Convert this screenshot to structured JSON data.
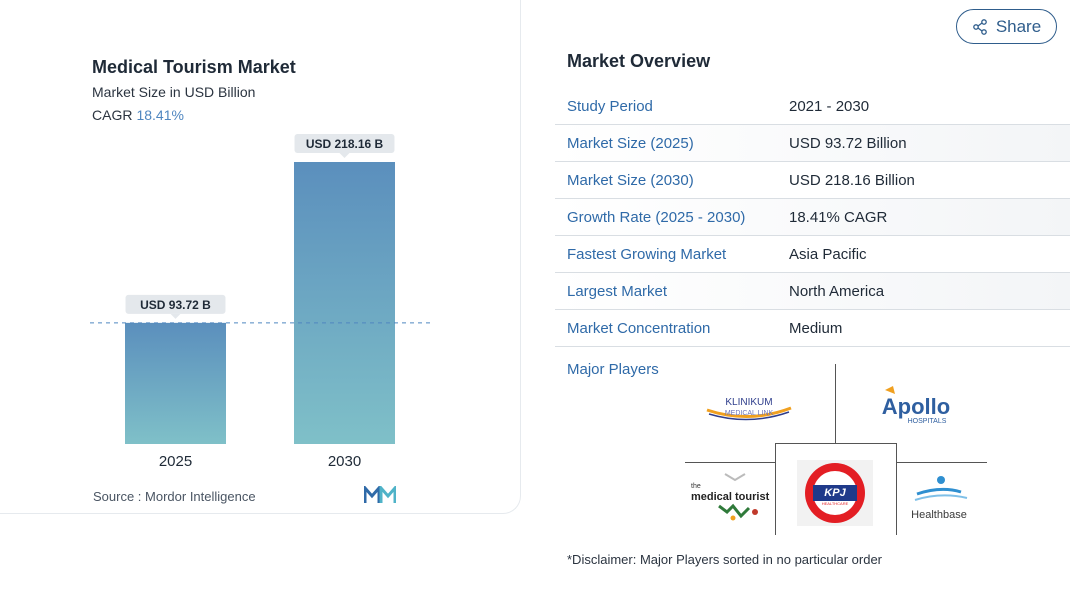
{
  "chart_card": {
    "title": "Medical Tourism Market",
    "subtitle": "Market Size in USD Billion",
    "cagr_label": "CAGR",
    "cagr_value": "18.41%",
    "source": "Source :  Mordor Intelligence",
    "source_logo_icon": "mordor-intelligence-logo-icon"
  },
  "chart_data": {
    "type": "bar",
    "categories": [
      "2025",
      "2030"
    ],
    "values": [
      93.72,
      218.16
    ],
    "data_labels": [
      "USD 93.72 B",
      "USD 218.16 B"
    ],
    "bar_colors": {
      "top": "#5b8fbd",
      "bottom": "#7fc0c8"
    },
    "reference_line": {
      "value": 93.72,
      "style": "dashed",
      "color": "#4f86c0"
    },
    "ylim": [
      0,
      218.16
    ],
    "grid": false,
    "legend": "none"
  },
  "share": {
    "label": "Share",
    "icon": "share-icon",
    "color": "#2f5d8c"
  },
  "overview": {
    "title": "Market Overview",
    "rows": [
      {
        "key": "Study Period",
        "value": "2021 - 2030"
      },
      {
        "key": "Market Size (2025)",
        "value": "USD 93.72 Billion"
      },
      {
        "key": "Market Size (2030)",
        "value": "USD 218.16 Billion"
      },
      {
        "key": "Growth Rate (2025 - 2030)",
        "value": "18.41% CAGR"
      },
      {
        "key": "Fastest Growing Market",
        "value": "Asia Pacific"
      },
      {
        "key": "Largest Market",
        "value": "North America"
      },
      {
        "key": "Market Concentration",
        "value": "Medium"
      }
    ],
    "major_players_label": "Major Players",
    "players": [
      {
        "name": "Klinikum Medical Link",
        "lines": [
          "KLINIKUM",
          "MEDICAL LINK"
        ]
      },
      {
        "name": "Apollo Hospitals",
        "lines": [
          "Apollo",
          "HOSPITALS"
        ]
      },
      {
        "name": "the medical tourist",
        "lines": [
          "the",
          "medical tourist"
        ]
      },
      {
        "name": "KPJ Healthcare",
        "lines": [
          "KPJ",
          "HEALTHCARE"
        ]
      },
      {
        "name": "Healthbase",
        "lines": [
          "Healthbase"
        ]
      }
    ],
    "disclaimer": "*Disclaimer: Major Players sorted in no particular order"
  },
  "colors": {
    "accent": "#2f6aa8",
    "brand_dark": "#2f5d8c"
  }
}
